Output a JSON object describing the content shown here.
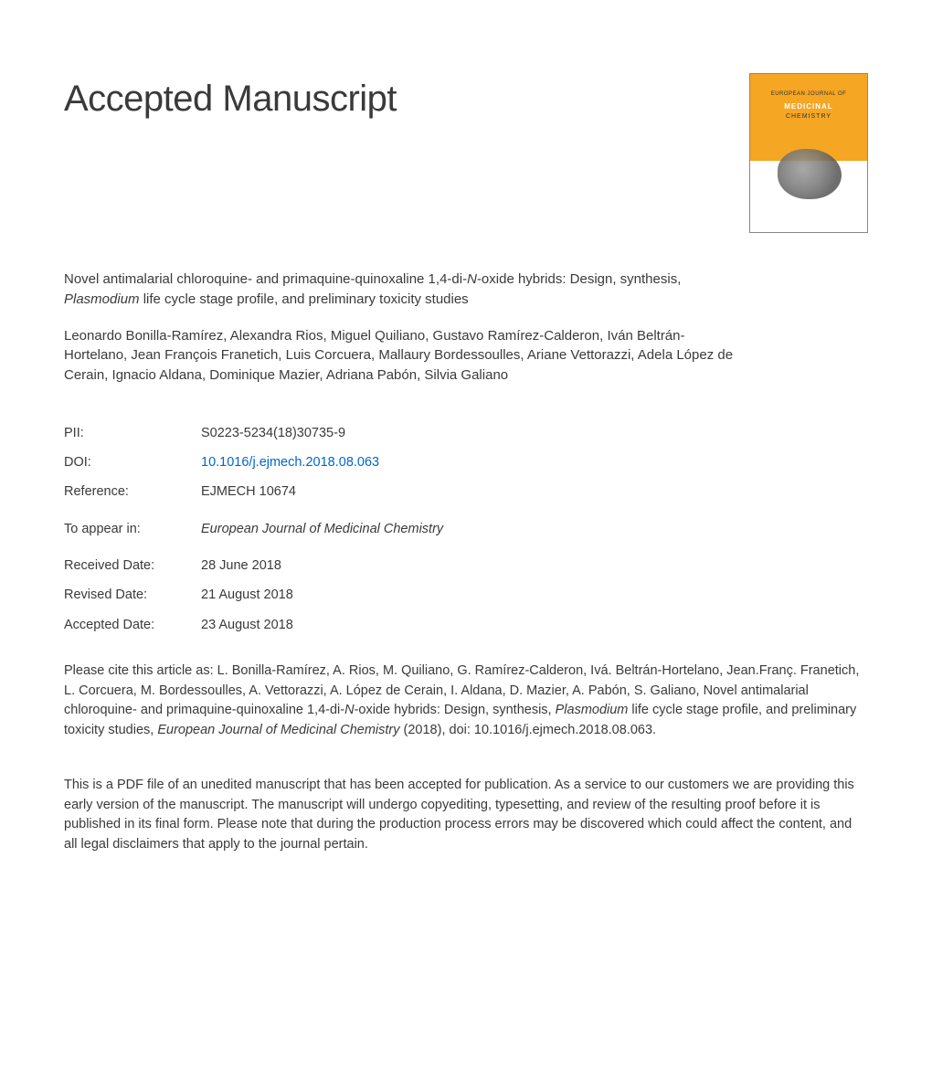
{
  "heading": "Accepted Manuscript",
  "cover": {
    "top_line": "EUROPEAN JOURNAL OF",
    "title": "MEDICINAL",
    "subtitle": "CHEMISTRY",
    "bg_top": "#f5a623",
    "bg_bottom": "#ffffff"
  },
  "article": {
    "title_pre": "Novel antimalarial chloroquine- and primaquine-quinoxaline 1,4-di-",
    "title_n": "N",
    "title_mid": "-oxide hybrids: Design, synthesis, ",
    "title_plasmodium": "Plasmodium",
    "title_post": " life cycle stage profile, and preliminary toxicity studies"
  },
  "authors": "Leonardo Bonilla-Ramírez, Alexandra Rios, Miguel Quiliano, Gustavo Ramírez-Calderon, Iván Beltrán-Hortelano, Jean François Franetich, Luis Corcuera, Mallaury Bordessoulles, Ariane Vettorazzi, Adela López de Cerain, Ignacio Aldana, Dominique Mazier, Adriana Pabón, Silvia Galiano",
  "meta": {
    "pii_label": "PII:",
    "pii_value": "S0223-5234(18)30735-9",
    "doi_label": "DOI:",
    "doi_value": "10.1016/j.ejmech.2018.08.063",
    "ref_label": "Reference:",
    "ref_value": "EJMECH 10674",
    "appear_label": "To appear in:",
    "appear_value": "European Journal of Medicinal Chemistry",
    "received_label": "Received Date:",
    "received_value": "28 June 2018",
    "revised_label": "Revised Date:",
    "revised_value": "21 August 2018",
    "accepted_label": "Accepted Date:",
    "accepted_value": "23 August 2018"
  },
  "citation": {
    "pre": "Please cite this article as: L. Bonilla-Ramírez, A. Rios, M. Quiliano, G. Ramírez-Calderon, Ivá. Beltrán-Hortelano, Jean.Franç. Franetich, L. Corcuera, M. Bordessoulles, A. Vettorazzi, A. López de Cerain, I. Aldana, D. Mazier, A. Pabón, S. Galiano, Novel antimalarial chloroquine- and primaquine-quinoxaline 1,4-di-",
    "n": "N",
    "mid": "-oxide hybrids: Design, synthesis, ",
    "plasmodium": "Plasmodium",
    "post1": " life cycle stage profile, and preliminary toxicity studies, ",
    "journal": "European Journal of Medicinal Chemistry",
    "post2": " (2018), doi: 10.1016/j.ejmech.2018.08.063."
  },
  "disclaimer": "This is a PDF file of an unedited manuscript that has been accepted for publication. As a service to our customers we are providing this early version of the manuscript. The manuscript will undergo copyediting, typesetting, and review of the resulting proof before it is published in its final form. Please note that during the production process errors may be discovered which could affect the content, and all legal disclaimers that apply to the journal pertain.",
  "colors": {
    "text": "#3a3a3a",
    "link": "#0066cc",
    "background": "#ffffff"
  },
  "typography": {
    "heading_fontsize": 40,
    "body_fontsize": 14.5,
    "font_family": "Arial"
  }
}
